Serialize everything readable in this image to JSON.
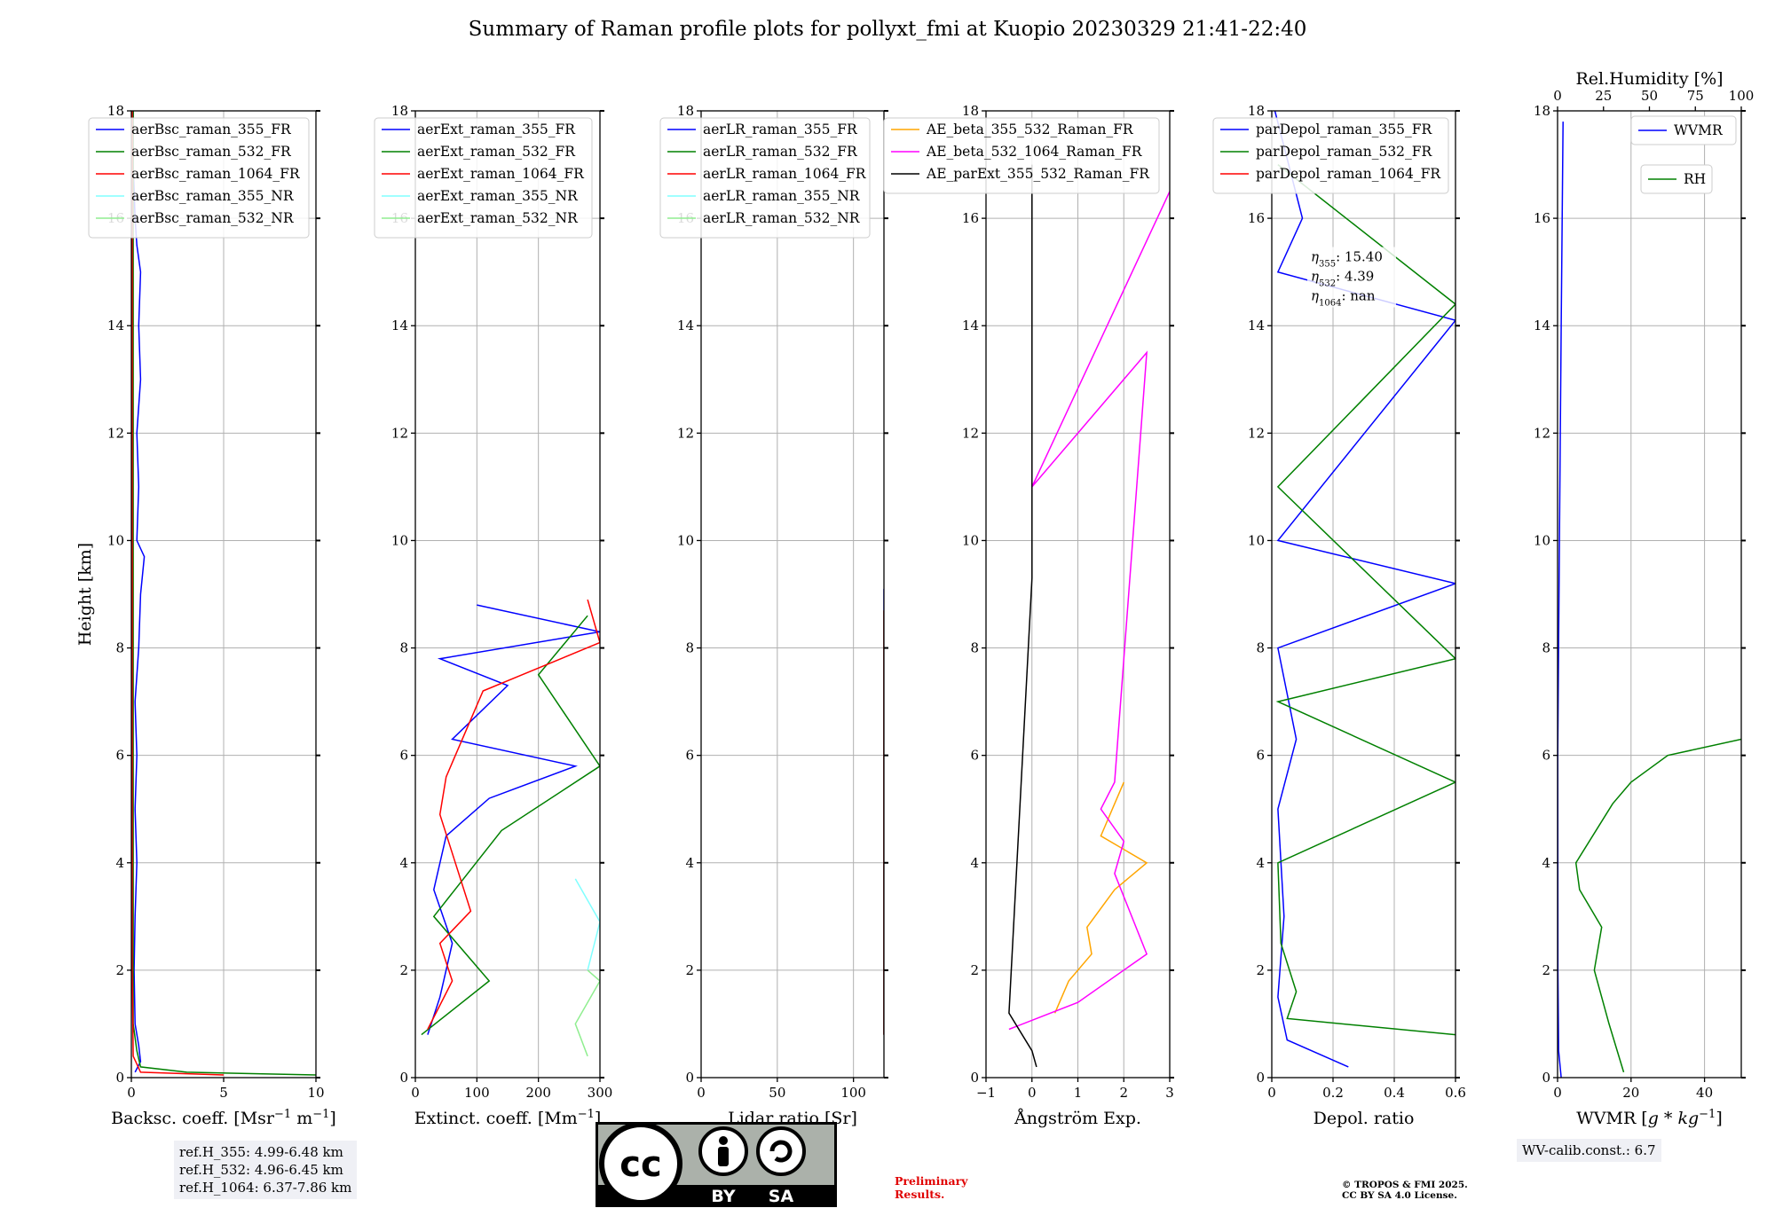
{
  "suptitle": "Summary of Raman profile plots for pollyxt_fmi at Kuopio 20230329 21:41-22:40",
  "ref_heights": [
    "ref.H_355: 4.99-6.48 km",
    "ref.H_532: 4.96-6.45 km",
    "ref.H_1064: 6.37-7.86 km"
  ],
  "wv_calib": "WV-calib.const.: 6.7",
  "preliminary": [
    "Preliminary",
    "Results."
  ],
  "copyright": [
    "© TROPOS & FMI 2025.",
    "CC BY SA 4.0 License."
  ],
  "license_badge": {
    "by": "BY",
    "sa": "SA",
    "cc": "cc"
  },
  "colors": {
    "blue": "#0000ff",
    "green": "#008000",
    "red": "#ff0000",
    "cyan": "#80ffff",
    "lightgreen": "#90ee90",
    "orange": "#ffa500",
    "magenta": "#ff00ff",
    "black": "#000000",
    "grid": "#b0b0b0",
    "box": "#eff0f5"
  },
  "chart_data": [
    {
      "type": "line",
      "ylabel": "Height [km]",
      "xlabel": "Backsc. coeff. [Msr$^{-1}$ m$^{-1}$]",
      "xlabel_display": [
        "Backsc. coeff. [Msr",
        "−1",
        " m",
        "−1",
        "]"
      ],
      "xlim": [
        0,
        10
      ],
      "ylim": [
        0,
        18
      ],
      "xticks": [
        0,
        5,
        10
      ],
      "yticks": [
        0,
        2,
        4,
        6,
        8,
        10,
        12,
        14,
        16,
        18
      ],
      "legend": "top-left",
      "series": [
        {
          "name": "aerBsc_raman_355_FR",
          "color": "blue",
          "values": [
            [
              0.2,
              0.1
            ],
            [
              0.5,
              0.3
            ],
            [
              0.4,
              0.6
            ],
            [
              0.2,
              1
            ],
            [
              0.15,
              2
            ],
            [
              0.2,
              3
            ],
            [
              0.3,
              4
            ],
            [
              0.2,
              5
            ],
            [
              0.3,
              6
            ],
            [
              0.2,
              7
            ],
            [
              0.4,
              8
            ],
            [
              0.5,
              9
            ],
            [
              0.7,
              9.7
            ],
            [
              0.3,
              10
            ],
            [
              0.4,
              11
            ],
            [
              0.3,
              12
            ],
            [
              0.5,
              13
            ],
            [
              0.4,
              14
            ],
            [
              0.5,
              15
            ],
            [
              0.3,
              15.5
            ],
            [
              0.2,
              16
            ],
            [
              0.1,
              17
            ],
            [
              0.1,
              18
            ]
          ]
        },
        {
          "name": "aerBsc_raman_532_FR",
          "color": "green",
          "values": [
            [
              10,
              0.05
            ],
            [
              3,
              0.1
            ],
            [
              0.5,
              0.2
            ],
            [
              0.3,
              0.5
            ],
            [
              0.1,
              1
            ],
            [
              0.1,
              5
            ],
            [
              0.1,
              12
            ],
            [
              0.1,
              18
            ]
          ]
        },
        {
          "name": "aerBsc_raman_1064_FR",
          "color": "red",
          "values": [
            [
              5,
              0.05
            ],
            [
              0.5,
              0.1
            ],
            [
              0.1,
              0.4
            ],
            [
              0.05,
              2
            ],
            [
              0.05,
              8
            ],
            [
              0.05,
              18
            ]
          ]
        },
        {
          "name": "aerBsc_raman_355_NR",
          "color": "cyan",
          "values": []
        },
        {
          "name": "aerBsc_raman_532_NR",
          "color": "lightgreen",
          "values": []
        }
      ]
    },
    {
      "type": "line",
      "xlabel": "Extinct. coeff. [Mm$^{-1}$]",
      "xlabel_display": [
        "Extinct. coeff. [Mm",
        "−1",
        "]"
      ],
      "xlim": [
        0,
        300
      ],
      "ylim": [
        0,
        18
      ],
      "xticks": [
        0,
        100,
        200,
        300
      ],
      "yticks": [
        0,
        2,
        4,
        6,
        8,
        10,
        12,
        14,
        16,
        18
      ],
      "legend": "top-left",
      "series": [
        {
          "name": "aerExt_raman_355_FR",
          "color": "blue",
          "values": [
            [
              20,
              0.8
            ],
            [
              40,
              1.5
            ],
            [
              60,
              2.5
            ],
            [
              30,
              3.5
            ],
            [
              50,
              4.5
            ],
            [
              120,
              5.2
            ],
            [
              260,
              5.8
            ],
            [
              60,
              6.3
            ],
            [
              150,
              7.3
            ],
            [
              40,
              7.8
            ],
            [
              300,
              8.3
            ],
            [
              100,
              8.8
            ]
          ]
        },
        {
          "name": "aerExt_raman_532_FR",
          "color": "green",
          "values": [
            [
              10,
              0.8
            ],
            [
              120,
              1.8
            ],
            [
              30,
              3.0
            ],
            [
              140,
              4.6
            ],
            [
              300,
              5.8
            ],
            [
              200,
              7.5
            ],
            [
              280,
              8.6
            ]
          ]
        },
        {
          "name": "aerExt_raman_1064_FR",
          "color": "red",
          "values": [
            [
              20,
              0.9
            ],
            [
              60,
              1.8
            ],
            [
              40,
              2.5
            ],
            [
              90,
              3.1
            ],
            [
              40,
              4.9
            ],
            [
              50,
              5.6
            ],
            [
              110,
              7.2
            ],
            [
              300,
              8.1
            ],
            [
              280,
              8.9
            ]
          ]
        },
        {
          "name": "aerExt_raman_355_NR",
          "color": "cyan",
          "values": [
            [
              280,
              2.0
            ],
            [
              300,
              2.9
            ],
            [
              260,
              3.7
            ]
          ]
        },
        {
          "name": "aerExt_raman_532_NR",
          "color": "lightgreen",
          "values": [
            [
              280,
              0.4
            ],
            [
              260,
              1.0
            ],
            [
              300,
              1.8
            ],
            [
              280,
              2.0
            ]
          ]
        }
      ]
    },
    {
      "type": "line",
      "xlabel": "Lidar ratio [Sr]",
      "xlim": [
        0,
        120
      ],
      "ylim": [
        0,
        18
      ],
      "xticks": [
        0,
        50,
        100
      ],
      "yticks": [
        0,
        2,
        4,
        6,
        8,
        10,
        12,
        14,
        16,
        18
      ],
      "legend": "top-left",
      "series": [
        {
          "name": "aerLR_raman_355_FR",
          "color": "blue",
          "values": [
            [
              120,
              0.8
            ],
            [
              120,
              9.1
            ]
          ]
        },
        {
          "name": "aerLR_raman_532_FR",
          "color": "green",
          "values": [
            [
              120,
              0.8
            ],
            [
              120,
              8.7
            ]
          ]
        },
        {
          "name": "aerLR_raman_1064_FR",
          "color": "red",
          "values": [
            [
              120,
              0.8
            ],
            [
              120,
              8.7
            ]
          ]
        },
        {
          "name": "aerLR_raman_355_NR",
          "color": "cyan",
          "values": []
        },
        {
          "name": "aerLR_raman_532_NR",
          "color": "lightgreen",
          "values": []
        }
      ]
    },
    {
      "type": "line",
      "xlabel": "Ångström Exp.",
      "xlim": [
        -1,
        3
      ],
      "ylim": [
        0,
        18
      ],
      "xticks": [
        -1,
        0,
        1,
        2,
        3
      ],
      "yticks": [
        0,
        2,
        4,
        6,
        8,
        10,
        12,
        14,
        16,
        18
      ],
      "legend": "top-right",
      "series": [
        {
          "name": "AE_beta_355_532_Raman_FR",
          "color": "orange",
          "values": [
            [
              0.5,
              1.2
            ],
            [
              0.8,
              1.8
            ],
            [
              1.3,
              2.3
            ],
            [
              1.2,
              2.8
            ],
            [
              1.8,
              3.5
            ],
            [
              2.5,
              4.0
            ],
            [
              1.5,
              4.5
            ],
            [
              2.0,
              5.5
            ]
          ]
        },
        {
          "name": "AE_beta_532_1064_Raman_FR",
          "color": "magenta",
          "values": [
            [
              -0.5,
              0.9
            ],
            [
              1.0,
              1.4
            ],
            [
              2.5,
              2.3
            ],
            [
              1.8,
              3.8
            ],
            [
              2.0,
              4.4
            ],
            [
              1.5,
              5.0
            ],
            [
              1.8,
              5.5
            ],
            [
              2.5,
              13.5
            ],
            [
              0.0,
              11.0
            ],
            [
              3,
              16.5
            ]
          ]
        },
        {
          "name": "AE_parExt_355_532_Raman_FR",
          "color": "black",
          "values": [
            [
              0.1,
              0.2
            ],
            [
              0.0,
              0.5
            ],
            [
              -0.5,
              1.2
            ],
            [
              0.0,
              9.3
            ],
            [
              0.0,
              17
            ]
          ]
        }
      ]
    },
    {
      "type": "line",
      "xlabel": "Depol. ratio",
      "xlim": [
        0,
        0.6
      ],
      "ylim": [
        0,
        18
      ],
      "xticks": [
        0.0,
        0.2,
        0.4,
        0.6
      ],
      "yticks": [
        0,
        2,
        4,
        6,
        8,
        10,
        12,
        14,
        16,
        18
      ],
      "legend": "top-left",
      "annotation": {
        "eta355": "15.40",
        "eta532": "4.39",
        "eta1064": "nan"
      },
      "series": [
        {
          "name": "parDepol_raman_355_FR",
          "color": "blue",
          "values": [
            [
              0.25,
              0.2
            ],
            [
              0.05,
              0.7
            ],
            [
              0.02,
              1.5
            ],
            [
              0.04,
              3
            ],
            [
              0.02,
              5
            ],
            [
              0.08,
              6.3
            ],
            [
              0.02,
              8
            ],
            [
              0.6,
              9.2
            ],
            [
              0.02,
              10
            ],
            [
              0.6,
              14.1
            ],
            [
              0.02,
              15
            ],
            [
              0.1,
              16
            ],
            [
              0.01,
              18
            ]
          ]
        },
        {
          "name": "parDepol_raman_532_FR",
          "color": "green",
          "values": [
            [
              0.6,
              0.8
            ],
            [
              0.05,
              1.1
            ],
            [
              0.08,
              1.6
            ],
            [
              0.03,
              2.5
            ],
            [
              0.02,
              4
            ],
            [
              0.6,
              5.5
            ],
            [
              0.02,
              7
            ],
            [
              0.6,
              7.8
            ],
            [
              0.02,
              11
            ],
            [
              0.6,
              14.4
            ],
            [
              0.02,
              17
            ]
          ]
        },
        {
          "name": "parDepol_raman_1064_FR",
          "color": "red",
          "values": []
        }
      ]
    },
    {
      "type": "line",
      "xlabel": "WVMR [$g*kg^{-1}$]",
      "xlabel_display": [
        "WVMR [",
        "g",
        " * ",
        "kg",
        "−1",
        "]"
      ],
      "x2label": "Rel.Humidity [%]",
      "xlim": [
        0,
        50
      ],
      "ylim": [
        0,
        18
      ],
      "xticks": [
        0,
        20,
        40
      ],
      "x2lim": [
        0,
        100
      ],
      "x2ticks": [
        0,
        25,
        50,
        75,
        100
      ],
      "yticks": [
        0,
        2,
        4,
        6,
        8,
        10,
        12,
        14,
        16,
        18
      ],
      "legend": "top-right",
      "series": [
        {
          "name": "WVMR",
          "color": "blue",
          "values": [
            [
              1,
              0
            ],
            [
              0.3,
              0.5
            ],
            [
              0.1,
              2
            ],
            [
              0.05,
              6
            ],
            [
              0.5,
              10
            ],
            [
              1,
              14
            ],
            [
              1.5,
              17.8
            ]
          ]
        },
        {
          "name": "RH",
          "color": "green",
          "values": [
            [
              18,
              0.1
            ],
            [
              14,
              1.0
            ],
            [
              10,
              2.0
            ],
            [
              12,
              2.8
            ],
            [
              6,
              3.5
            ],
            [
              5,
              4.0
            ],
            [
              15,
              5.1
            ],
            [
              20,
              5.5
            ],
            [
              30,
              6.0
            ],
            [
              50,
              6.3
            ]
          ]
        }
      ]
    }
  ]
}
